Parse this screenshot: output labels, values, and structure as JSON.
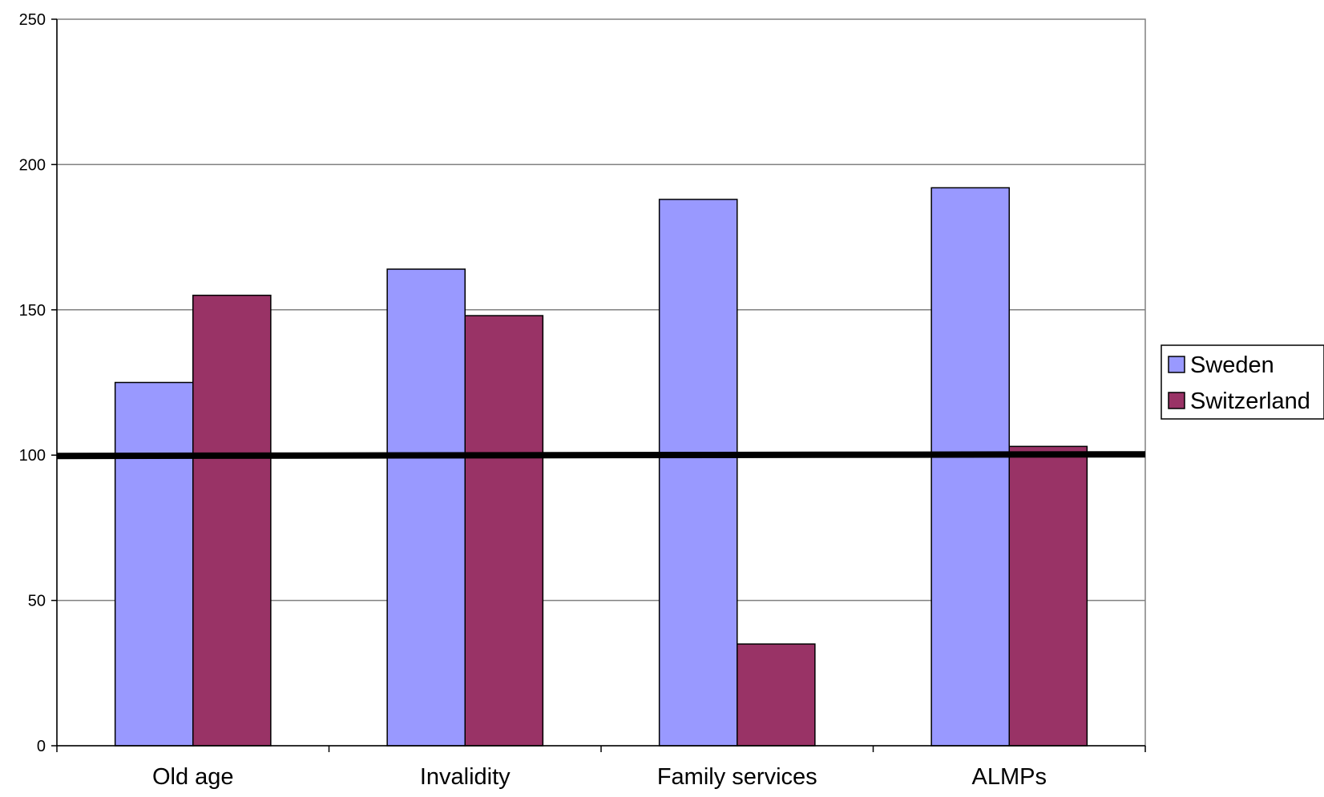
{
  "chart_data": {
    "type": "bar",
    "title": "",
    "xlabel": "",
    "ylabel": "",
    "categories": [
      "Old age",
      "Invalidity",
      "Family services",
      "ALMPs"
    ],
    "series": [
      {
        "name": "Sweden",
        "values": [
          125,
          164,
          188,
          192
        ],
        "color": "#9999ff"
      },
      {
        "name": "Switzerland",
        "values": [
          155,
          148,
          35,
          103
        ],
        "color": "#993366"
      }
    ],
    "ylim": [
      0,
      250
    ],
    "yticks": [
      0,
      50,
      100,
      150,
      200,
      250
    ],
    "reference_line": 100,
    "grid": true,
    "legend_position": "right"
  }
}
